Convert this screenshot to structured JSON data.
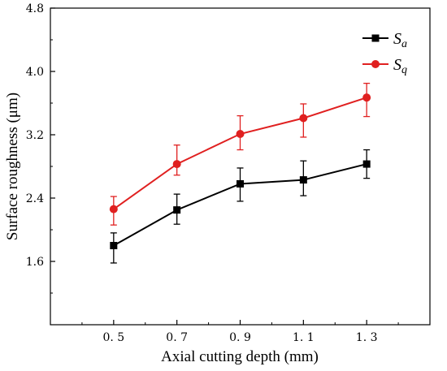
{
  "chart_data": {
    "type": "line",
    "x": [
      0.5,
      0.7,
      0.9,
      1.1,
      1.3
    ],
    "x_tick_labels": [
      "0. 5",
      "0. 7",
      "0. 9",
      "1. 1",
      "1. 3"
    ],
    "y_tick_labels": [
      "1.6",
      "2.4",
      "3.2",
      "4.0",
      "4.8"
    ],
    "y_ticks": [
      1.6,
      2.4,
      3.2,
      4.0,
      4.8
    ],
    "xlabel": "Axial cutting depth (mm)",
    "ylabel": "Surface roughness (μm)",
    "xlim": [
      0.3,
      1.5
    ],
    "ylim": [
      0.8,
      4.8
    ],
    "grid": false,
    "legend_position": "top-right",
    "series": [
      {
        "name": "S",
        "name_sub": "a",
        "color": "#000000",
        "marker": "square",
        "values": [
          1.8,
          2.25,
          2.58,
          2.63,
          2.83
        ],
        "err_low": [
          0.22,
          0.18,
          0.22,
          0.2,
          0.18
        ],
        "err_high": [
          0.16,
          0.2,
          0.2,
          0.24,
          0.18
        ]
      },
      {
        "name": "S",
        "name_sub": "q",
        "color": "#e02020",
        "marker": "circle",
        "values": [
          2.26,
          2.83,
          3.21,
          3.41,
          3.67
        ],
        "err_low": [
          0.2,
          0.14,
          0.2,
          0.24,
          0.24
        ],
        "err_high": [
          0.16,
          0.24,
          0.23,
          0.18,
          0.18
        ]
      }
    ]
  }
}
